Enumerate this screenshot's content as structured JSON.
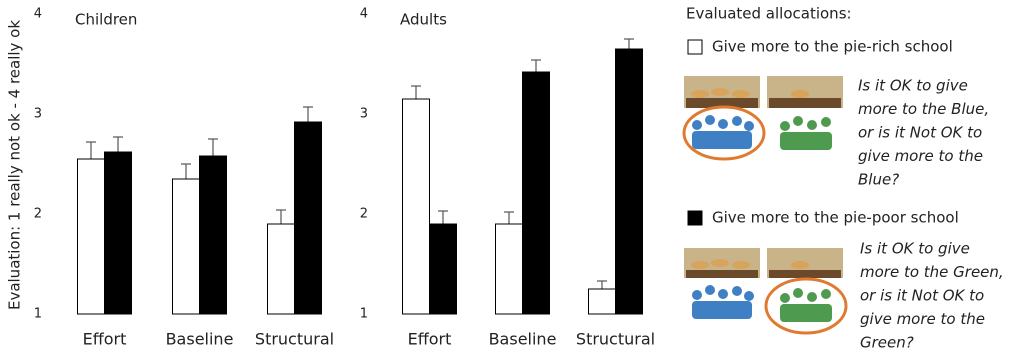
{
  "chart_data": [
    {
      "type": "bar",
      "title": "Children",
      "ylabel": "Evaluation: 1 really not ok - 4 really ok",
      "categories": [
        "Effort",
        "Baseline",
        "Structural"
      ],
      "ylim": [
        1,
        4
      ],
      "yticks": [
        1,
        2,
        3,
        4
      ],
      "series": [
        {
          "name": "Give more to the pie-rich school",
          "color": "#ffffff",
          "values": [
            2.55,
            2.35,
            1.9
          ],
          "errors": [
            0.17,
            0.15,
            0.14
          ]
        },
        {
          "name": "Give more to the pie-poor school",
          "color": "#000000",
          "values": [
            2.62,
            2.58,
            2.92
          ],
          "errors": [
            0.15,
            0.17,
            0.15
          ]
        }
      ]
    },
    {
      "type": "bar",
      "title": "Adults",
      "categories": [
        "Effort",
        "Baseline",
        "Structural"
      ],
      "ylim": [
        1,
        4
      ],
      "yticks": [
        1,
        2,
        3,
        4
      ],
      "series": [
        {
          "color": "#ffffff",
          "values": [
            3.15,
            1.9,
            1.25
          ],
          "errors": [
            0.13,
            0.12,
            0.08
          ]
        },
        {
          "color": "#000000",
          "values": [
            1.9,
            3.42,
            3.65
          ],
          "errors": [
            0.13,
            0.12,
            0.1
          ]
        }
      ]
    }
  ],
  "legend_title": "Evaluated allocations:",
  "questions": [
    [
      "Is it OK to give",
      "more to the Blue,",
      "or is it Not OK to",
      "give more to the",
      "Blue?"
    ],
    [
      "Is it OK to give",
      "more to the Green,",
      "or is it Not OK to",
      "give more to the",
      "Green?"
    ]
  ]
}
